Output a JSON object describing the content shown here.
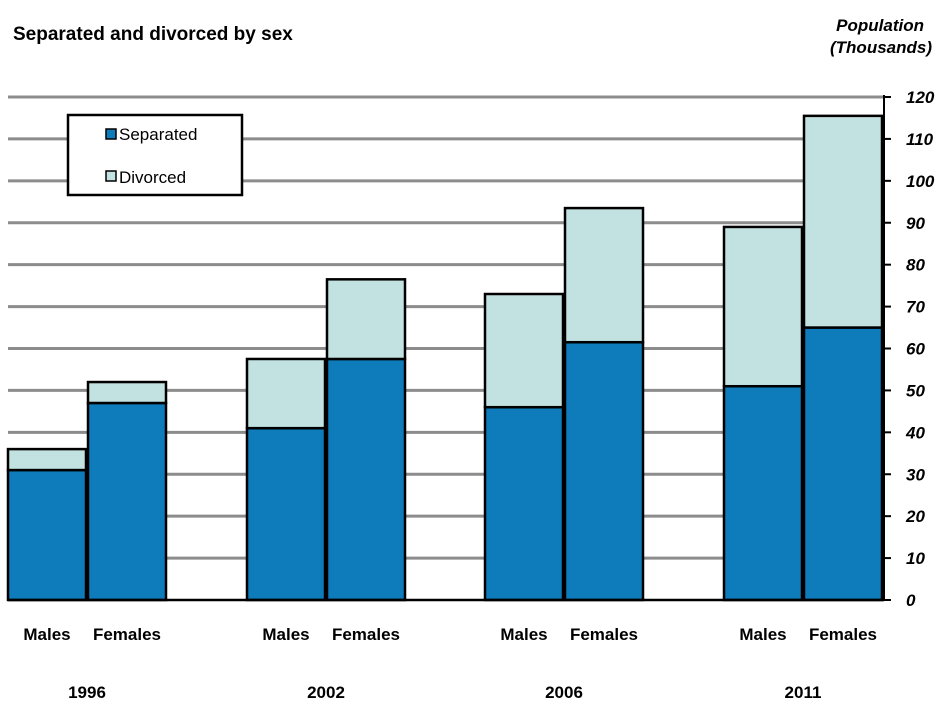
{
  "chart_data": {
    "type": "bar",
    "stacked": true,
    "title": "Separated and divorced by sex",
    "unit_label": [
      "Population",
      "(Thousands)"
    ],
    "groups": [
      "1996",
      "2002",
      "2006",
      "2011"
    ],
    "categories": [
      "Males",
      "Females"
    ],
    "series": [
      {
        "name": "Separated",
        "color": "#0e7cba",
        "values": [
          [
            31,
            47
          ],
          [
            41,
            57.5
          ],
          [
            46,
            61.5
          ],
          [
            51,
            65
          ]
        ]
      },
      {
        "name": "Divorced",
        "color": "#c2e2e2",
        "values": [
          [
            5,
            5
          ],
          [
            16.5,
            19
          ],
          [
            27,
            32
          ],
          [
            38,
            50.5
          ]
        ]
      }
    ],
    "ylim": [
      0,
      120
    ],
    "yticks": [
      0,
      10,
      20,
      30,
      40,
      50,
      60,
      70,
      80,
      90,
      100,
      110,
      120
    ],
    "y_axis_side": "right",
    "grid": true,
    "legend": {
      "position": "top-left"
    }
  }
}
